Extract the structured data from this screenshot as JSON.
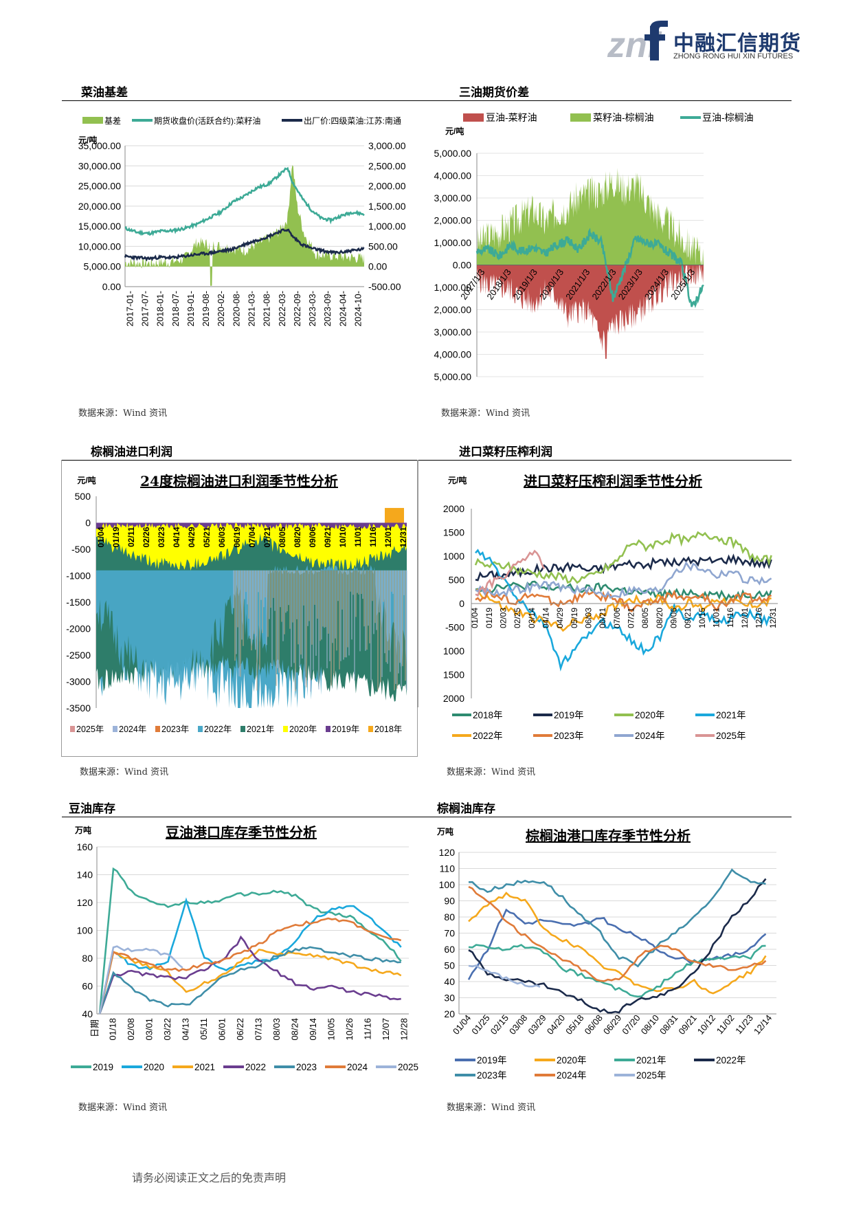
{
  "header": {
    "logo_mark": "znf",
    "logo_cn": "中融汇信期货",
    "logo_en": "ZHONG RONG HUI XIN FUTURES"
  },
  "sections": {
    "s1": "菜油基差",
    "s2": "三油期货价差",
    "s3": "棕榈油进口利润",
    "s4": "进口菜籽压榨利润",
    "s5": "豆油库存",
    "s6": "棕榈油库存"
  },
  "sources": {
    "c1": "数据来源：Wind 资讯",
    "c2": "数据来源：Wind 资讯",
    "c3": "数据来源：Wind 资讯",
    "c4": "数据来源：Wind 资讯",
    "c5": "数据来源：Wind 资讯",
    "c6": "数据来源：Wind 资讯"
  },
  "footer": "请务必阅读正文之后的免责声明",
  "colors": {
    "green": "#92c050",
    "teal": "#3daa96",
    "navy": "#1b2a4a",
    "red": "#c0504d",
    "cyan": "#1aa8dc",
    "orange": "#f5a81c",
    "purple": "#6a3d8f",
    "gray_blue": "#8fa6d0",
    "lavender": "#9cb3d9",
    "salmon": "#d99494",
    "brown_orange": "#e07b39",
    "dark_teal": "#2e8b70",
    "yellow": "#ffff00",
    "steel": "#3f8ea8"
  },
  "chart_data": [
    {
      "type": "area",
      "unit": "元/吨",
      "legend": [
        "基差",
        "期货收盘价(活跃合约):菜籽油",
        "出厂价:四级菜油:江苏:南通"
      ],
      "y_left_ticks": [
        "35,000.00",
        "30,000.00",
        "25,000.00",
        "20,000.00",
        "15,000.00",
        "10,000.00",
        "5,000.00",
        "0.00"
      ],
      "y_right_ticks": [
        "3,000.00",
        "2,500.00",
        "2,000.00",
        "1,500.00",
        "1,000.00",
        "500.00",
        "0.00",
        "-500.00"
      ],
      "x_ticks": [
        "2017-01-",
        "2017-07-",
        "2018-01-",
        "2018-07-",
        "2019-01-",
        "2019-08-",
        "2020-02-",
        "2020-08-",
        "2021-03-",
        "2021-08-",
        "2022-03-",
        "2022-09-",
        "2023-03-",
        "2023-09-",
        "2024-04-",
        "2024-10-"
      ],
      "ylim_left": [
        0,
        35000
      ],
      "ylim_right": [
        -500,
        3000
      ],
      "series": [
        {
          "name": "期货收盘价(活跃合约):菜籽油",
          "x": [
            0,
            0.05,
            0.1,
            0.15,
            0.2,
            0.25,
            0.3,
            0.35,
            0.4,
            0.45,
            0.5,
            0.55,
            0.6,
            0.65,
            0.68,
            0.7,
            0.74,
            0.78,
            0.82,
            0.86,
            0.9,
            0.95,
            1
          ],
          "values": [
            14500,
            13500,
            13200,
            13800,
            13900,
            14500,
            15500,
            17000,
            18500,
            21000,
            22500,
            24500,
            25500,
            28000,
            29500,
            26000,
            22000,
            19000,
            17000,
            16500,
            17500,
            18500,
            18000
          ]
        },
        {
          "name": "出厂价:四级菜油:江苏:南通",
          "x": [
            0,
            0.05,
            0.1,
            0.15,
            0.2,
            0.25,
            0.3,
            0.35,
            0.4,
            0.45,
            0.5,
            0.55,
            0.6,
            0.65,
            0.68,
            0.7,
            0.74,
            0.78,
            0.82,
            0.86,
            0.9,
            0.95,
            1
          ],
          "values": [
            7500,
            7200,
            7000,
            7300,
            7200,
            7600,
            8000,
            8300,
            8800,
            9300,
            10500,
            11500,
            12500,
            13800,
            14200,
            12500,
            10500,
            9500,
            9000,
            8500,
            8500,
            9000,
            9300
          ]
        },
        {
          "name": "基差",
          "x": [
            0,
            0.1,
            0.2,
            0.25,
            0.3,
            0.4,
            0.5,
            0.55,
            0.6,
            0.65,
            0.68,
            0.7,
            0.72,
            0.75,
            0.8,
            0.9,
            1
          ],
          "values": [
            100,
            80,
            120,
            200,
            600,
            500,
            400,
            550,
            700,
            900,
            1200,
            2600,
            1500,
            800,
            300,
            250,
            200
          ]
        }
      ]
    },
    {
      "type": "area",
      "legend": [
        "豆油-菜籽油",
        "菜籽油-棕榈油",
        "豆油-棕榈油"
      ],
      "y_ticks": [
        "5,000.00",
        "4,000.00",
        "3,000.00",
        "2,000.00",
        "1,000.00",
        "0.00",
        "1,000.00",
        "2,000.00",
        "3,000.00",
        "4,000.00",
        "5,000.00"
      ],
      "x_ticks": [
        "2017/1/3",
        "2018/1/3",
        "2019/1/3",
        "2020/1/3",
        "2021/1/3",
        "2022/1/3",
        "2023/1/3",
        "2024/1/3",
        "2025/1/3"
      ],
      "ylim": [
        -5000,
        5000
      ],
      "series": [
        {
          "name": "菜籽油-棕榈油",
          "x": [
            0,
            0.05,
            0.1,
            0.15,
            0.2,
            0.25,
            0.3,
            0.35,
            0.4,
            0.45,
            0.5,
            0.55,
            0.6,
            0.65,
            0.7,
            0.75,
            0.8,
            0.85,
            0.9,
            0.95,
            1
          ],
          "values": [
            900,
            1300,
            1500,
            1800,
            2200,
            2500,
            1900,
            2400,
            2600,
            3000,
            3200,
            3300,
            3800,
            3400,
            3600,
            2900,
            2200,
            1800,
            1200,
            700,
            200
          ]
        },
        {
          "name": "豆油-菜籽油",
          "x": [
            0,
            0.05,
            0.1,
            0.15,
            0.2,
            0.25,
            0.3,
            0.35,
            0.4,
            0.45,
            0.5,
            0.55,
            0.6,
            0.65,
            0.7,
            0.75,
            0.8,
            0.85,
            0.9,
            0.95,
            1
          ],
          "values": [
            -600,
            -900,
            -1000,
            -1100,
            -1500,
            -1700,
            -1200,
            -1400,
            -2300,
            -2000,
            -2200,
            -3400,
            -2700,
            -2500,
            -2200,
            -1800,
            -1300,
            -800,
            -600,
            -400,
            -300
          ]
        },
        {
          "name": "豆油-棕榈油",
          "x": [
            0,
            0.05,
            0.1,
            0.15,
            0.2,
            0.25,
            0.3,
            0.35,
            0.4,
            0.45,
            0.5,
            0.55,
            0.6,
            0.65,
            0.7,
            0.75,
            0.8,
            0.85,
            0.9,
            0.95,
            1
          ],
          "values": [
            600,
            700,
            400,
            900,
            600,
            800,
            500,
            900,
            1100,
            700,
            1400,
            1000,
            -1500,
            -200,
            1200,
            1000,
            900,
            500,
            100,
            -1900,
            -900
          ]
        }
      ]
    },
    {
      "type": "area",
      "title": "24度棕榈油进口利润季节性分析",
      "unit": "元/吨",
      "y_ticks": [
        "500",
        "0",
        "-500",
        "-1000",
        "-1500",
        "-2000",
        "-2500",
        "-3000",
        "-3500"
      ],
      "x_ticks": [
        "01/04",
        "01/19",
        "02/11",
        "02/26",
        "03/23",
        "04/14",
        "04/29",
        "05/21",
        "06/03",
        "06/19",
        "07/04",
        "07/21",
        "08/05",
        "08/20",
        "09/06",
        "09/21",
        "10/10",
        "11/01",
        "11/16",
        "12/01",
        "12/31"
      ],
      "ylim": [
        -3500,
        500
      ],
      "legend": [
        "2025年",
        "2024年",
        "2023年",
        "2022年",
        "2021年",
        "2020年",
        "2019年",
        "2018年"
      ]
    },
    {
      "type": "line",
      "title": "进口菜籽压榨利润季节性分析",
      "unit": "元/吨",
      "y_ticks": [
        "2000",
        "1500",
        "1000",
        "500",
        "0",
        "-500",
        "1000",
        "1500",
        "2000"
      ],
      "x_ticks": [
        "01/04",
        "01/19",
        "02/03",
        "02/25",
        "03/14",
        "04/14",
        "04/29",
        "05/19",
        "06/03",
        "06/21",
        "07/06",
        "07/21",
        "08/05",
        "08/20",
        "09/06",
        "09/21",
        "10/15",
        "11/01",
        "11/16",
        "12/01",
        "12/16",
        "12/31"
      ],
      "ylim": [
        -2000,
        2000
      ],
      "series": [
        {
          "name": "2018年",
          "values": [
            350,
            300,
            400,
            350,
            400,
            300,
            350,
            300,
            300,
            350,
            300,
            250,
            200,
            200,
            200,
            250,
            200,
            200,
            150,
            200,
            200,
            200
          ]
        },
        {
          "name": "2019年",
          "values": [
            550,
            600,
            600,
            650,
            700,
            750,
            750,
            800,
            700,
            750,
            800,
            850,
            800,
            900,
            850,
            900,
            900,
            900,
            950,
            900,
            850,
            850
          ]
        },
        {
          "name": "2020年",
          "values": [
            850,
            800,
            800,
            700,
            650,
            600,
            550,
            500,
            550,
            700,
            900,
            1300,
            1200,
            1300,
            1400,
            1300,
            1500,
            1400,
            1300,
            1100,
            900,
            950
          ]
        },
        {
          "name": "2021年",
          "values": [
            1100,
            900,
            500,
            100,
            -200,
            -500,
            -1300,
            -1000,
            -600,
            -400,
            -500,
            -800,
            -1000,
            -700,
            -100,
            -300,
            -200,
            -400,
            -300,
            -200,
            -300,
            -400
          ]
        },
        {
          "name": "2022年",
          "values": [
            300,
            100,
            -100,
            -200,
            -300,
            -400,
            -500,
            -400,
            -300,
            -200,
            0,
            100,
            50,
            100,
            -100,
            0,
            -100,
            100,
            50,
            -50,
            0,
            50
          ]
        },
        {
          "name": "2023年",
          "values": [
            100,
            200,
            100,
            50,
            200,
            100,
            0,
            100,
            200,
            150,
            50,
            -100,
            0,
            100,
            200,
            100,
            150,
            -100,
            100,
            150,
            100,
            100
          ]
        },
        {
          "name": "2024年",
          "values": [
            300,
            250,
            250,
            300,
            350,
            400,
            350,
            300,
            250,
            200,
            200,
            300,
            250,
            300,
            700,
            800,
            750,
            600,
            700,
            500,
            500,
            450
          ]
        },
        {
          "name": "2025年",
          "values": [
            200,
            400,
            600,
            800,
            1100,
            750,
            null,
            null,
            null,
            null,
            null,
            null,
            null,
            null,
            null,
            null,
            null,
            null,
            null,
            null,
            null,
            null
          ]
        }
      ]
    },
    {
      "type": "line",
      "title": "豆油港口库存季节性分析",
      "unit": "万吨",
      "y_ticks": [
        "160",
        "140",
        "120",
        "100",
        "80",
        "60",
        "40"
      ],
      "x_label": "日期",
      "x_ticks": [
        "01/18",
        "02/08",
        "03/01",
        "03/22",
        "04/13",
        "05/11",
        "06/01",
        "06/22",
        "07/13",
        "08/03",
        "08/24",
        "09/14",
        "10/05",
        "10/26",
        "11/16",
        "12/07",
        "12/28"
      ],
      "ylim": [
        40,
        160
      ],
      "series": [
        {
          "name": "2019",
          "values": [
            145,
            128,
            120,
            118,
            120,
            120,
            122,
            126,
            126,
            128,
            125,
            115,
            112,
            110,
            100,
            90,
            76
          ]
        },
        {
          "name": "2020",
          "values": [
            85,
            75,
            72,
            78,
            122,
            80,
            72,
            75,
            78,
            80,
            92,
            108,
            115,
            118,
            110,
            98,
            85
          ]
        },
        {
          "name": "2021",
          "values": [
            85,
            78,
            74,
            70,
            55,
            62,
            68,
            78,
            86,
            82,
            84,
            82,
            80,
            76,
            72,
            70,
            68
          ]
        },
        {
          "name": "2022",
          "values": [
            68,
            70,
            68,
            66,
            66,
            72,
            78,
            94,
            78,
            70,
            62,
            58,
            60,
            56,
            54,
            52,
            50
          ]
        },
        {
          "name": "2023",
          "values": [
            70,
            58,
            50,
            46,
            46,
            56,
            66,
            72,
            74,
            82,
            86,
            88,
            84,
            82,
            80,
            78,
            78
          ]
        },
        {
          "name": "2024",
          "values": [
            85,
            80,
            75,
            72,
            72,
            76,
            78,
            84,
            90,
            100,
            104,
            106,
            108,
            106,
            100,
            94,
            92
          ]
        },
        {
          "name": "2025",
          "values": [
            88,
            86,
            86,
            82,
            72,
            null,
            null,
            null,
            null,
            null,
            null,
            null,
            null,
            null,
            null,
            null,
            null
          ]
        }
      ]
    },
    {
      "type": "line",
      "title": "棕榈油港口库存季节性分析",
      "unit": "万吨",
      "y_ticks": [
        "120",
        "110",
        "100",
        "90",
        "80",
        "70",
        "60",
        "50",
        "40",
        "30",
        "20"
      ],
      "x_ticks": [
        "01/04",
        "01/25",
        "02/15",
        "03/08",
        "03/29",
        "04/20",
        "05/18",
        "06/08",
        "06/29",
        "07/20",
        "08/10",
        "08/31",
        "09/21",
        "10/12",
        "11/02",
        "11/23",
        "12/14"
      ],
      "ylim": [
        20,
        120
      ],
      "series": [
        {
          "name": "2019年",
          "values": [
            42,
            60,
            85,
            76,
            78,
            75,
            75,
            80,
            72,
            68,
            60,
            55,
            52,
            55,
            56,
            60,
            73
          ]
        },
        {
          "name": "2020年",
          "values": [
            78,
            88,
            94,
            90,
            72,
            66,
            60,
            50,
            45,
            38,
            35,
            36,
            40,
            32,
            40,
            46,
            58
          ]
        },
        {
          "name": "2021年",
          "values": [
            62,
            62,
            60,
            62,
            58,
            48,
            44,
            40,
            35,
            30,
            36,
            46,
            52,
            54,
            55,
            55,
            65
          ]
        },
        {
          "name": "2022年",
          "values": [
            60,
            45,
            42,
            40,
            38,
            33,
            28,
            22,
            22,
            30,
            30,
            36,
            45,
            62,
            80,
            92,
            106
          ]
        },
        {
          "name": "2023年",
          "values": [
            102,
            96,
            100,
            102,
            102,
            92,
            80,
            70,
            55,
            50,
            62,
            70,
            80,
            92,
            108,
            102,
            101
          ]
        },
        {
          "name": "2024年",
          "values": [
            99,
            90,
            78,
            68,
            60,
            54,
            48,
            40,
            42,
            55,
            62,
            60,
            52,
            50,
            48,
            50,
            53
          ]
        },
        {
          "name": "2025年",
          "values": [
            50,
            47,
            42,
            38,
            37,
            null,
            null,
            null,
            null,
            null,
            null,
            null,
            null,
            null,
            null,
            null,
            null
          ]
        }
      ]
    }
  ]
}
